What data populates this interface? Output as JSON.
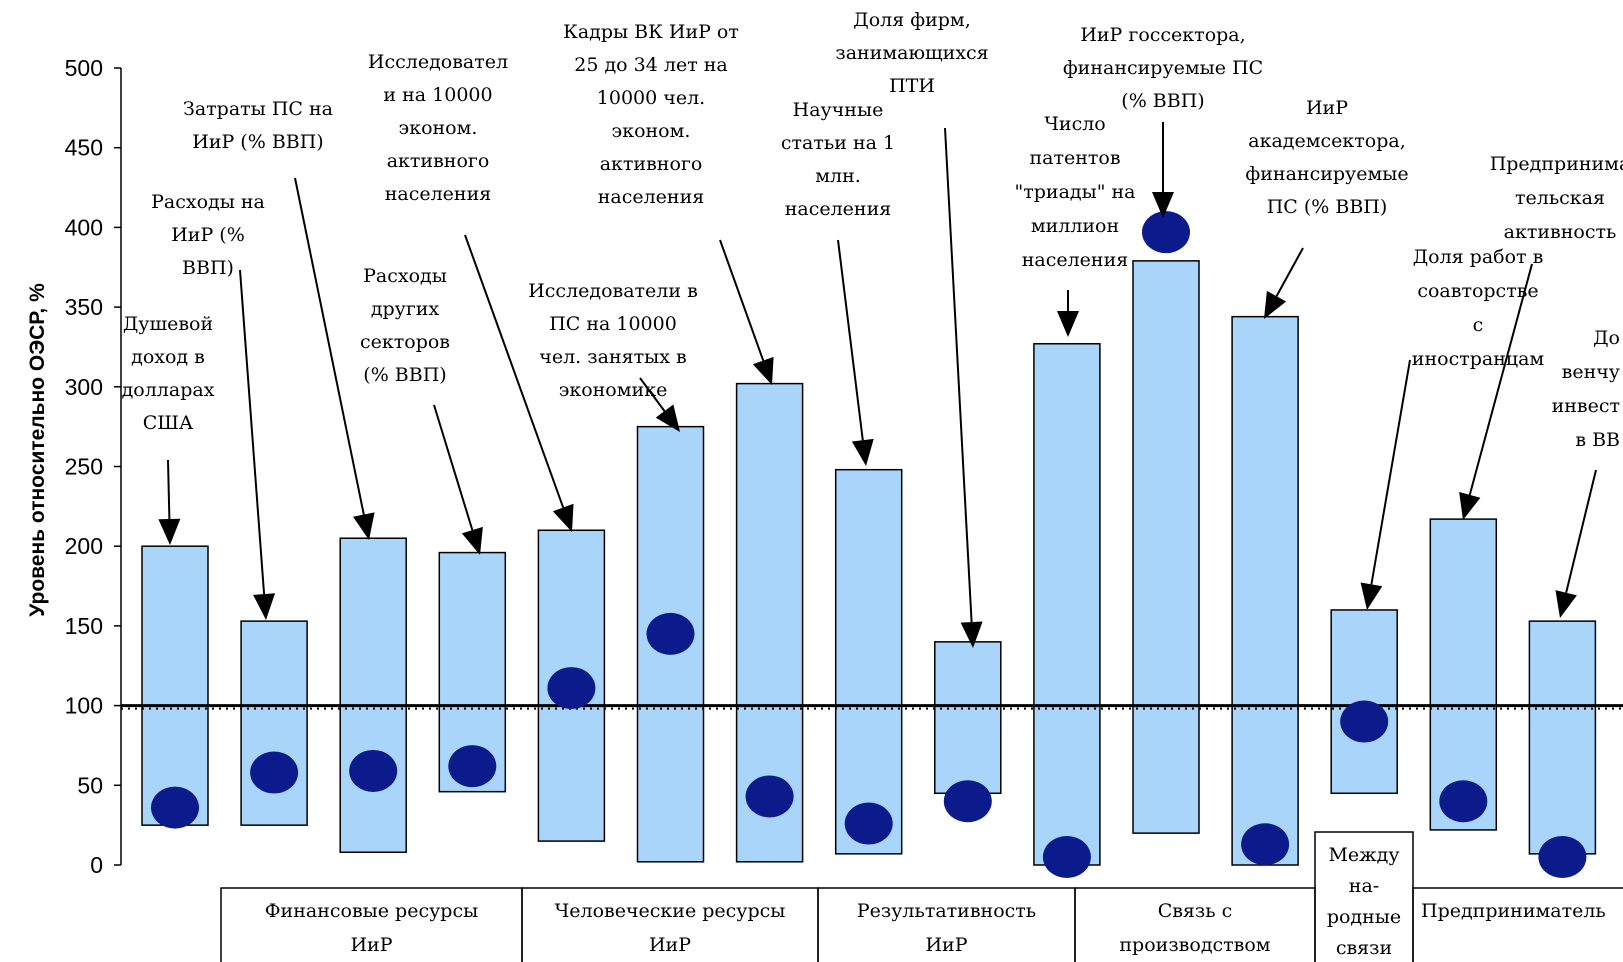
{
  "chart_data": {
    "type": "bar",
    "title": "",
    "ylabel": "Уровень относительно ОЭСР, %",
    "ylim": [
      0,
      500
    ],
    "yticks": [
      "0",
      "50",
      "100",
      "150",
      "200",
      "250",
      "300",
      "350",
      "400",
      "450",
      "500"
    ],
    "reference_line": 100,
    "grid": false,
    "colors": {
      "bar_fill": "#a9d5fb",
      "bar_stroke": "#000000",
      "marker": "#0c1b8c"
    },
    "bars": [
      {
        "label": "Душевой доход в долларах США",
        "low": 25,
        "high": 200,
        "point": 36
      },
      {
        "label": "Расходы на ИиР (% ВВП)",
        "low": 25,
        "high": 153,
        "point": 58
      },
      {
        "label": "Затраты ПС на ИиР (% ВВП)",
        "low": 8,
        "high": 205,
        "point": 59
      },
      {
        "label": "Расходы других секторов (% ВВП)",
        "low": 46,
        "high": 196,
        "point": 62
      },
      {
        "label": "Исследователи на 10000 эконом. активного населения",
        "low": 15,
        "high": 210,
        "point": 111
      },
      {
        "label": "Исследователи в ПС на 10000 чел. занятых в экономике",
        "low": 2,
        "high": 275,
        "point": 145
      },
      {
        "label": "Кадры ВК ИиР от 25 до 34 лет на 10000 чел. эконом. активного населения",
        "low": 2,
        "high": 302,
        "point": 43
      },
      {
        "label": "Научные статьи на 1 млн. населения",
        "low": 7,
        "high": 248,
        "point": 26
      },
      {
        "label": "Доля фирм, занимающихся ПТИ",
        "low": 45,
        "high": 140,
        "point": 40
      },
      {
        "label": "Число патентов \"триады\" на миллион населения",
        "low": 0,
        "high": 327,
        "point": 5
      },
      {
        "label": "ИиР госсектора, финансируемые ПС (% ВВП)",
        "low": 20,
        "high": 379,
        "point": 397
      },
      {
        "label": "ИиР академсектора, финансируемые ПС (% ВВП)",
        "low": 0,
        "high": 344,
        "point": 13
      },
      {
        "label": "Доля работ в соавторстве с иностранцам",
        "low": 45,
        "high": 160,
        "point": 90
      },
      {
        "label": "Предпринимательская активность",
        "low": 22,
        "high": 217,
        "point": 40
      },
      {
        "label": "Доля венчурных инвестиций в ВВП",
        "low": 7,
        "high": 153,
        "point": 5
      }
    ],
    "annotations": [
      {
        "lines": [
          "Душевой",
          "доход в",
          "долларах",
          "США"
        ]
      },
      {
        "lines": [
          "Расходы на",
          "ИиР (%",
          "ВВП)"
        ]
      },
      {
        "lines": [
          "Затраты ПС на",
          "ИиР (% ВВП)"
        ]
      },
      {
        "lines": [
          "Расходы",
          "других",
          "секторов",
          "(% ВВП)"
        ]
      },
      {
        "lines": [
          "Исследовател",
          "и на 10000",
          "эконом.",
          "активного",
          "населения"
        ]
      },
      {
        "lines": [
          "Исследователи в",
          "ПС на 10000",
          "чел. занятых в",
          "экономике"
        ]
      },
      {
        "lines": [
          "Кадры ВК ИиР от",
          "25 до 34 лет на",
          "10000 чел.",
          "эконом.",
          "активного",
          "населения"
        ]
      },
      {
        "lines": [
          "Научные",
          "статьи на 1",
          "млн.",
          "населения"
        ]
      },
      {
        "lines": [
          "Доля фирм,",
          "занимающихся",
          "ПТИ"
        ]
      },
      {
        "lines": [
          "Число",
          "патентов",
          "\"триады\" на",
          "миллион",
          "населения"
        ]
      },
      {
        "lines": [
          "ИиР госсектора,",
          "финансируемые ПС",
          "(% ВВП)"
        ]
      },
      {
        "lines": [
          "ИиР",
          "академсектора,",
          "финансируемые",
          "ПС (% ВВП)"
        ]
      },
      {
        "lines": [
          "Доля работ в",
          "соавторстве",
          "с",
          "иностранцам"
        ]
      },
      {
        "lines": [
          "Предпринима",
          "тельская",
          "активность"
        ]
      },
      {
        "lines": [
          "До",
          "венчу",
          "инвест",
          "в ВВ"
        ]
      }
    ],
    "groups": [
      {
        "lines": [
          "Финансовые ресурсы",
          "ИиР"
        ]
      },
      {
        "lines": [
          "Человеческие ресурсы",
          "ИиР"
        ]
      },
      {
        "lines": [
          "Результативность",
          "ИиР"
        ]
      },
      {
        "lines": [
          "Связь с",
          "производством"
        ]
      },
      {
        "lines": [
          "Между",
          "на-",
          "родные",
          "связи"
        ]
      },
      {
        "lines": [
          "Предприниматель"
        ]
      }
    ]
  }
}
